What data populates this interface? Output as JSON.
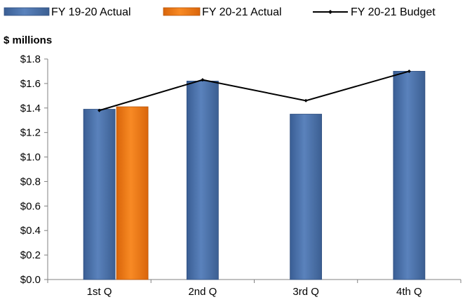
{
  "chart_data": {
    "type": "bar",
    "title": "",
    "ylabel": "$ millions",
    "xlabel": "",
    "categories": [
      "1st Q",
      "2nd Q",
      "3rd Q",
      "4th Q"
    ],
    "ylim": [
      0,
      1.8
    ],
    "y_ticks": [
      "$0.0",
      "$0.2",
      "$0.4",
      "$0.6",
      "$0.8",
      "$1.0",
      "$1.2",
      "$1.4",
      "$1.6",
      "$1.8"
    ],
    "legend_position": "top",
    "grid": false,
    "series": [
      {
        "name": "FY 19-20 Actual",
        "kind": "bar",
        "color": "#4F76AE",
        "values": [
          1.39,
          1.62,
          1.35,
          1.7
        ]
      },
      {
        "name": "FY 20-21 Actual",
        "kind": "bar",
        "color": "#F07A14",
        "values": [
          1.41,
          null,
          null,
          null
        ]
      },
      {
        "name": "FY 20-21 Budget",
        "kind": "line",
        "color": "#000000",
        "values": [
          1.38,
          1.63,
          1.46,
          1.7
        ]
      }
    ]
  }
}
